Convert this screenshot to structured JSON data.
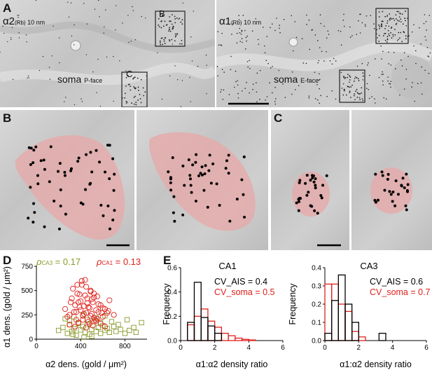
{
  "panelA": {
    "label": "A",
    "left": {
      "title_main": "α2",
      "title_sub": "(Rb)",
      "title_size": "10 nm",
      "soma_label": "soma",
      "face_label": "P-face",
      "box_B": "B",
      "box_C": "C"
    },
    "right": {
      "title_main": "α1",
      "title_sub": "(Rb)",
      "title_size": "10 nm",
      "soma_label": "soma",
      "face_label": "E-face"
    }
  },
  "panelB": {
    "label": "B"
  },
  "panelC": {
    "label": "C"
  },
  "panelD": {
    "label": "D",
    "rho_ca3_symbol": "ρ",
    "rho_ca3_sub": "CA3",
    "rho_ca3_value": "= 0.17",
    "rho_ca1_symbol": "ρ",
    "rho_ca1_sub": "CA1",
    "rho_ca1_value": "= 0.13",
    "ylabel": "α1 dens. (gold / μm²)",
    "xlabel": "α2 dens. (gold / μm²)",
    "ca1_color": "#e0201b",
    "ca3_color": "#8a9a2a"
  },
  "panelE": {
    "label": "E",
    "ylabel": "Frequency",
    "ca1_color": "#e0201b",
    "ais_color": "#000000"
  },
  "chart_data": [
    {
      "type": "scatter",
      "panel": "D",
      "xlabel": "α2 dens. (gold / μm²)",
      "ylabel": "α1 dens. (gold / μm²)",
      "xlim": [
        0,
        1000
      ],
      "ylim": [
        0,
        750
      ],
      "xticks": [
        "0",
        "400",
        "800"
      ],
      "yticks": [
        "0",
        "250",
        "500",
        "750"
      ],
      "series": [
        {
          "name": "CA1",
          "marker": "circle",
          "color": "#e0201b",
          "x": [
            260,
            300,
            320,
            340,
            350,
            360,
            380,
            390,
            400,
            410,
            420,
            430,
            440,
            450,
            460,
            470,
            480,
            490,
            500,
            510,
            520,
            540,
            550,
            560,
            580,
            600,
            620,
            640,
            660,
            700,
            300,
            350,
            380,
            420,
            450,
            480,
            510,
            540,
            580,
            620,
            330,
            370,
            400,
            440,
            470,
            500,
            530,
            560,
            600,
            650,
            280,
            310,
            360,
            390,
            430,
            460,
            490,
            520,
            550,
            590,
            410,
            450,
            490,
            370,
            520
          ],
          "y": [
            310,
            250,
            420,
            280,
            350,
            200,
            380,
            460,
            300,
            560,
            240,
            340,
            610,
            270,
            420,
            180,
            320,
            490,
            260,
            380,
            220,
            300,
            440,
            280,
            350,
            230,
            310,
            270,
            400,
            250,
            150,
            130,
            170,
            200,
            120,
            160,
            140,
            190,
            160,
            130,
            520,
            470,
            390,
            450,
            330,
            410,
            200,
            360,
            320,
            290,
            230,
            380,
            280,
            330,
            260,
            370,
            240,
            430,
            210,
            270,
            600,
            540,
            500,
            560,
            470
          ]
        },
        {
          "name": "CA3",
          "marker": "square",
          "color": "#8a9a2a",
          "x": [
            200,
            240,
            280,
            300,
            320,
            340,
            360,
            380,
            400,
            420,
            440,
            460,
            480,
            500,
            520,
            540,
            560,
            580,
            600,
            620,
            640,
            660,
            700,
            720,
            760,
            800,
            840,
            880,
            900,
            950,
            260,
            300,
            340,
            380,
            420,
            460,
            500,
            540,
            580,
            620,
            680,
            740,
            820,
            330,
            430
          ],
          "y": [
            90,
            120,
            60,
            150,
            80,
            110,
            40,
            170,
            95,
            130,
            70,
            150,
            50,
            100,
            180,
            80,
            120,
            60,
            140,
            90,
            110,
            70,
            130,
            80,
            100,
            60,
            90,
            120,
            70,
            170,
            210,
            190,
            230,
            160,
            250,
            200,
            30,
            220,
            170,
            240,
            180,
            150,
            200,
            50,
            20
          ]
        }
      ],
      "annotations": [
        "ρ CA3 = 0.17",
        "ρ CA1 = 0.13"
      ]
    },
    {
      "type": "bar",
      "panel": "E-left",
      "title": "CA1",
      "xlabel": "α1:α2 density ratio",
      "ylabel": "Frequency",
      "xlim": [
        0,
        6
      ],
      "ylim": [
        0,
        0.6
      ],
      "xticks": [
        "0",
        "2",
        "4",
        "6"
      ],
      "yticks": [
        "0.0",
        "0.2",
        "0.4",
        "0.6"
      ],
      "bin_width": 0.4,
      "bin_starts": [
        0.0,
        0.4,
        0.8,
        1.2,
        1.6,
        2.0,
        2.4,
        2.8,
        3.2,
        3.6,
        4.0,
        4.4
      ],
      "series": [
        {
          "name": "CV_AIS",
          "color": "#000000",
          "values": [
            0.0,
            0.15,
            0.48,
            0.19,
            0.12,
            0.06,
            0.0,
            0.0,
            0.0,
            0.0,
            0.0,
            0.0
          ]
        },
        {
          "name": "CV_soma",
          "color": "#e0201b",
          "values": [
            0.0,
            0.13,
            0.2,
            0.26,
            0.16,
            0.11,
            0.06,
            0.04,
            0.02,
            0.01,
            0.005,
            0.0
          ]
        }
      ],
      "annotations": [
        {
          "text": "CV_AIS = 0.4",
          "color": "#000000"
        },
        {
          "text": "CV_soma = 0.5",
          "color": "#e0201b"
        }
      ]
    },
    {
      "type": "bar",
      "panel": "E-right",
      "title": "CA3",
      "xlabel": "α1:α2 density ratio",
      "ylabel": "",
      "xlim": [
        0,
        6
      ],
      "ylim": [
        0,
        0.4
      ],
      "xticks": [
        "0",
        "2",
        "4",
        "6"
      ],
      "yticks": [
        "0.0",
        "0.1",
        "0.2",
        "0.3",
        "0.4"
      ],
      "bin_width": 0.4,
      "bin_starts": [
        0.0,
        0.4,
        0.8,
        1.2,
        1.6,
        2.0,
        2.4,
        2.8,
        3.2,
        3.6
      ],
      "series": [
        {
          "name": "CV_AIS",
          "color": "#000000",
          "values": [
            0.04,
            0.22,
            0.36,
            0.2,
            0.1,
            0.0,
            0.0,
            0.0,
            0.04,
            0.0
          ]
        },
        {
          "name": "CV_soma",
          "color": "#e0201b",
          "values": [
            0.31,
            0.31,
            0.2,
            0.16,
            0.05,
            0.02,
            0.0,
            0.0,
            0.0,
            0.0
          ]
        }
      ],
      "annotations": [
        {
          "text": "CV_AIS = 0.6",
          "color": "#000000"
        },
        {
          "text": "CV_soma = 0.7",
          "color": "#e0201b"
        }
      ]
    }
  ]
}
